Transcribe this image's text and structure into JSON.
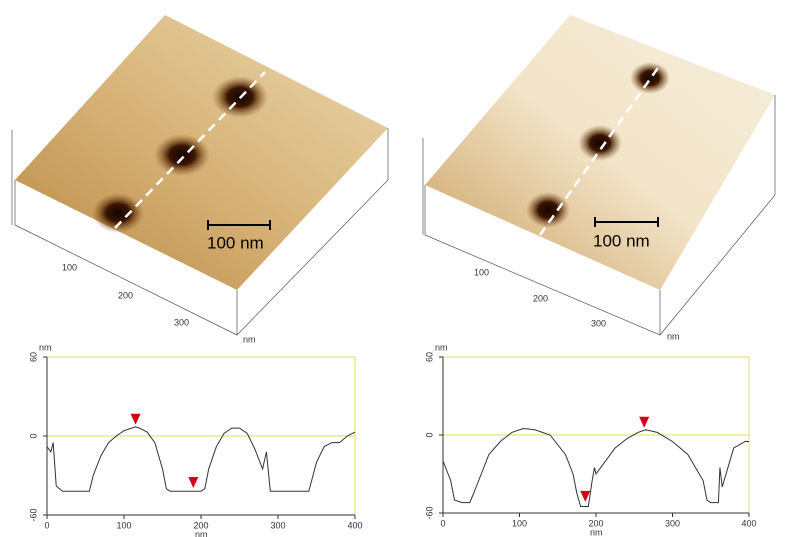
{
  "images": [
    {
      "scale_bar": "100 nm",
      "axis_ticks": [
        "100",
        "200",
        "300"
      ],
      "unit": "nm"
    },
    {
      "scale_bar": "100 nm",
      "axis_ticks": [
        "100",
        "200",
        "300"
      ],
      "unit": "nm"
    }
  ],
  "chart_data": [
    {
      "type": "line",
      "xlabel": "nm",
      "ylabel": "nm",
      "xlim": [
        0,
        400
      ],
      "ylim": [
        -60,
        60
      ],
      "xticks": [
        0,
        100,
        200,
        300,
        400
      ],
      "yticks": [
        -60,
        0,
        60
      ],
      "grid": true,
      "grid_color": "#e6df5a",
      "color": "#333333",
      "x": [
        0,
        5,
        8,
        12,
        20,
        40,
        55,
        60,
        70,
        80,
        90,
        100,
        110,
        115,
        120,
        130,
        140,
        150,
        155,
        160,
        200,
        205,
        210,
        220,
        230,
        240,
        250,
        260,
        270,
        280,
        285,
        288,
        290,
        320,
        340,
        350,
        360,
        370,
        380,
        390,
        400
      ],
      "values": [
        -8,
        -12,
        -5,
        -38,
        -42,
        -42,
        -42,
        -30,
        -15,
        -5,
        0,
        4,
        6,
        7,
        6,
        3,
        -5,
        -25,
        -40,
        -42,
        -42,
        -40,
        -25,
        -8,
        2,
        6,
        6,
        2,
        -10,
        -25,
        -12,
        -30,
        -42,
        -42,
        -42,
        -20,
        -8,
        -5,
        -5,
        0,
        3
      ],
      "markers": {
        "x": [
          115,
          190
        ],
        "y": [
          7,
          -41
        ],
        "color": "#d0021b"
      }
    },
    {
      "type": "line",
      "xlabel": "nm",
      "ylabel": "nm",
      "xlim": [
        0,
        400
      ],
      "ylim": [
        -60,
        60
      ],
      "xticks": [
        0,
        100,
        200,
        300,
        400
      ],
      "yticks": [
        -60,
        0,
        60
      ],
      "grid": true,
      "grid_color": "#e6df5a",
      "color": "#333333",
      "x": [
        0,
        10,
        15,
        25,
        35,
        40,
        50,
        60,
        75,
        90,
        105,
        120,
        140,
        160,
        170,
        175,
        180,
        190,
        195,
        198,
        200,
        210,
        225,
        240,
        255,
        265,
        280,
        300,
        320,
        340,
        345,
        350,
        360,
        362,
        365,
        380,
        395,
        400
      ],
      "values": [
        -20,
        -35,
        -50,
        -52,
        -52,
        -45,
        -30,
        -15,
        -5,
        2,
        5,
        4,
        0,
        -15,
        -30,
        -45,
        -55,
        -55,
        -35,
        -25,
        -30,
        -22,
        -10,
        -3,
        2,
        4,
        2,
        -5,
        -15,
        -35,
        -50,
        -52,
        -52,
        -25,
        -40,
        -10,
        -5,
        -5
      ],
      "markers": {
        "x": [
          186,
          263
        ],
        "y": [
          -53,
          4
        ],
        "color": "#d0021b"
      }
    }
  ]
}
